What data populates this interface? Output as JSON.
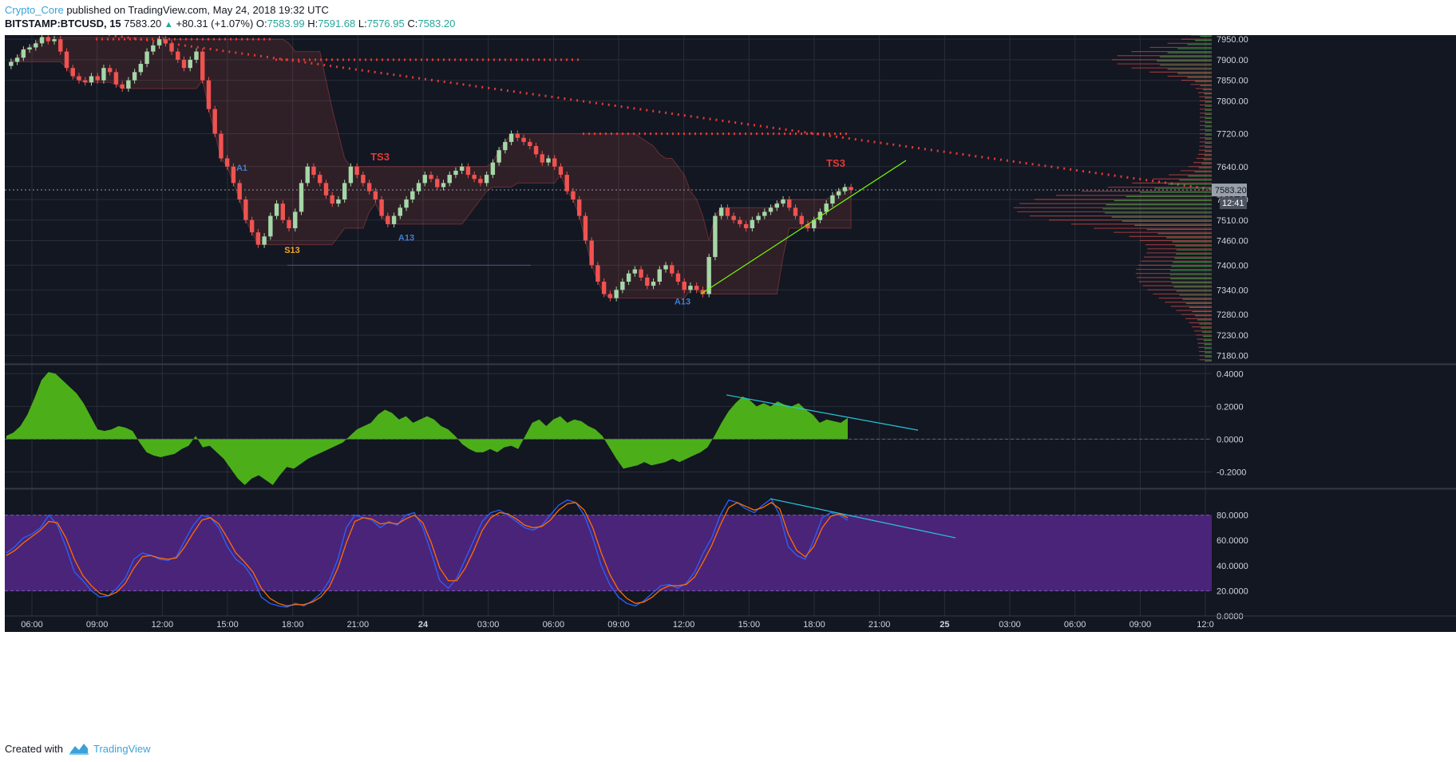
{
  "header": {
    "author": "Crypto_Core",
    "published_text": "published on TradingView.com, May 24, 2018 19:32 UTC",
    "symbol": "BITSTAMP:BTCUSD, 15",
    "last_price": "7583.20",
    "change": "+80.31 (+1.07%)",
    "open_label": "O:",
    "open": "7583.99",
    "high_label": "H:",
    "high": "7591.68",
    "low_label": "L:",
    "low": "7576.95",
    "close_label": "C:",
    "close": "7583.20"
  },
  "footer": {
    "created_label": "Created with",
    "brand": "TradingView"
  },
  "colors": {
    "background": "#131722",
    "grid": "#2a2e39",
    "bull": "#a5d6a7",
    "bear": "#ef5350",
    "macd_fill": "#4caf1a",
    "rsi_band": "#4a2478",
    "stoch_k": "#2962ff",
    "stoch_d": "#ff6d00",
    "trendline_red": "#e53935",
    "trendline_green": "#76ff03",
    "trendline_cyan": "#26c6da"
  },
  "chart_data": [
    {
      "type": "candlestick",
      "pane": "price",
      "x_tick_labels": [
        "06:00",
        "09:00",
        "12:00",
        "15:00",
        "18:00",
        "21:00",
        "24",
        "03:00",
        "06:00",
        "09:00",
        "12:00",
        "15:00",
        "18:00",
        "21:00",
        "25",
        "03:00",
        "06:00",
        "09:00",
        "12:0"
      ],
      "y_tick_labels": [
        "7950.00",
        "7900.00",
        "7850.00",
        "7800.00",
        "7720.00",
        "7640.00",
        "7560.00",
        "7510.00",
        "7460.00",
        "7400.00",
        "7340.00",
        "7280.00",
        "7230.00",
        "7180.00"
      ],
      "last_price_label": "7583.20",
      "countdown_label": "12:41",
      "ylim": [
        7160,
        7960
      ],
      "close_series": [
        7895,
        7905,
        7925,
        7930,
        7940,
        7955,
        7945,
        7950,
        7920,
        7880,
        7860,
        7850,
        7845,
        7860,
        7850,
        7880,
        7870,
        7840,
        7830,
        7850,
        7870,
        7890,
        7920,
        7935,
        7950,
        7940,
        7920,
        7900,
        7880,
        7900,
        7920,
        7850,
        7780,
        7720,
        7660,
        7640,
        7600,
        7560,
        7510,
        7480,
        7450,
        7470,
        7520,
        7550,
        7510,
        7490,
        7530,
        7600,
        7640,
        7620,
        7600,
        7570,
        7550,
        7560,
        7600,
        7640,
        7620,
        7600,
        7580,
        7560,
        7520,
        7500,
        7520,
        7540,
        7560,
        7580,
        7600,
        7620,
        7610,
        7590,
        7600,
        7620,
        7630,
        7640,
        7620,
        7610,
        7600,
        7620,
        7650,
        7680,
        7700,
        7720,
        7710,
        7700,
        7690,
        7670,
        7650,
        7660,
        7640,
        7620,
        7580,
        7560,
        7520,
        7460,
        7400,
        7360,
        7330,
        7320,
        7340,
        7360,
        7380,
        7390,
        7370,
        7350,
        7360,
        7390,
        7400,
        7380,
        7360,
        7340,
        7350,
        7340,
        7330,
        7420,
        7520,
        7540,
        7520,
        7510,
        7500,
        7490,
        7510,
        7520,
        7530,
        7540,
        7550,
        7560,
        7540,
        7520,
        7500,
        7490,
        7510,
        7530,
        7550,
        7570,
        7580,
        7590,
        7583
      ],
      "signal_labels": [
        "TS3",
        "S13",
        "A13",
        "A13",
        "TS3",
        "A1"
      ],
      "trendlines": [
        {
          "name": "descending-resistance",
          "color": "#e53935"
        },
        {
          "name": "ascending-support",
          "color": "#76ff03"
        }
      ],
      "horizontal_levels": [
        7950,
        7900,
        7720,
        7583.2,
        7400
      ]
    },
    {
      "type": "area",
      "pane": "oscillator",
      "y_tick_labels": [
        "0.4000",
        "0.2000",
        "0.0000",
        "-0.2000"
      ],
      "ylim": [
        -0.3,
        0.45
      ],
      "values": [
        0.02,
        0.04,
        0.08,
        0.15,
        0.25,
        0.36,
        0.41,
        0.4,
        0.36,
        0.32,
        0.28,
        0.22,
        0.14,
        0.06,
        0.05,
        0.06,
        0.08,
        0.07,
        0.05,
        -0.02,
        -0.08,
        -0.1,
        -0.11,
        -0.1,
        -0.09,
        -0.06,
        -0.04,
        0.02,
        -0.05,
        -0.04,
        -0.08,
        -0.12,
        -0.18,
        -0.24,
        -0.28,
        -0.24,
        -0.22,
        -0.25,
        -0.28,
        -0.22,
        -0.17,
        -0.18,
        -0.15,
        -0.12,
        -0.1,
        -0.08,
        -0.06,
        -0.04,
        -0.02,
        0.02,
        0.06,
        0.08,
        0.1,
        0.15,
        0.18,
        0.16,
        0.12,
        0.14,
        0.1,
        0.12,
        0.14,
        0.12,
        0.08,
        0.06,
        0.02,
        -0.03,
        -0.06,
        -0.08,
        -0.08,
        -0.06,
        -0.08,
        -0.05,
        -0.04,
        -0.06,
        0.02,
        0.1,
        0.12,
        0.08,
        0.12,
        0.14,
        0.1,
        0.12,
        0.11,
        0.08,
        0.06,
        0.02,
        -0.05,
        -0.12,
        -0.18,
        -0.17,
        -0.16,
        -0.14,
        -0.16,
        -0.15,
        -0.14,
        -0.12,
        -0.14,
        -0.12,
        -0.1,
        -0.08,
        -0.05,
        0.02,
        0.1,
        0.17,
        0.22,
        0.26,
        0.24,
        0.2,
        0.22,
        0.2,
        0.23,
        0.21,
        0.2,
        0.22,
        0.18,
        0.15,
        0.1,
        0.12,
        0.11,
        0.1,
        0.13
      ],
      "trendline": {
        "name": "bearish-divergence-line",
        "color": "#26c6da"
      }
    },
    {
      "type": "line",
      "pane": "stochastic",
      "y_tick_labels": [
        "80.0000",
        "60.0000",
        "40.0000",
        "20.0000",
        "0.0000"
      ],
      "ylim": [
        0,
        100
      ],
      "band": [
        20,
        80
      ],
      "series": [
        {
          "values": [
            50,
            55,
            62,
            65,
            70,
            80,
            72,
            55,
            35,
            28,
            20,
            15,
            16,
            22,
            30,
            45,
            50,
            48,
            45,
            44,
            47,
            60,
            72,
            80,
            78,
            70,
            55,
            45,
            40,
            30,
            15,
            10,
            8,
            7,
            10,
            8,
            12,
            18,
            28,
            45,
            70,
            80,
            78,
            76,
            70,
            75,
            72,
            80,
            82,
            70,
            50,
            28,
            22,
            30,
            45,
            60,
            75,
            82,
            84,
            80,
            75,
            70,
            68,
            72,
            80,
            88,
            92,
            90,
            80,
            62,
            40,
            25,
            15,
            10,
            8,
            12,
            18,
            24,
            25,
            22,
            26,
            35,
            50,
            62,
            80,
            92,
            90,
            85,
            82,
            88,
            93,
            80,
            55,
            48,
            45,
            60,
            78,
            82,
            80,
            76
          ]
        },
        {
          "values": [
            48,
            52,
            58,
            63,
            68,
            75,
            74,
            62,
            45,
            32,
            24,
            18,
            16,
            19,
            26,
            38,
            47,
            48,
            46,
            45,
            46,
            55,
            66,
            76,
            78,
            73,
            62,
            50,
            43,
            35,
            22,
            14,
            10,
            8,
            9,
            9,
            11,
            15,
            23,
            38,
            58,
            75,
            78,
            77,
            73,
            74,
            73,
            77,
            80,
            74,
            58,
            38,
            28,
            28,
            38,
            52,
            68,
            78,
            82,
            81,
            77,
            72,
            70,
            71,
            76,
            84,
            89,
            90,
            84,
            70,
            50,
            33,
            21,
            14,
            10,
            11,
            15,
            21,
            24,
            24,
            25,
            31,
            43,
            56,
            72,
            86,
            90,
            87,
            84,
            86,
            90,
            85,
            65,
            52,
            47,
            55,
            70,
            79,
            81,
            78
          ]
        }
      ],
      "trendline": {
        "name": "bearish-divergence-line",
        "color": "#26c6da"
      }
    }
  ]
}
